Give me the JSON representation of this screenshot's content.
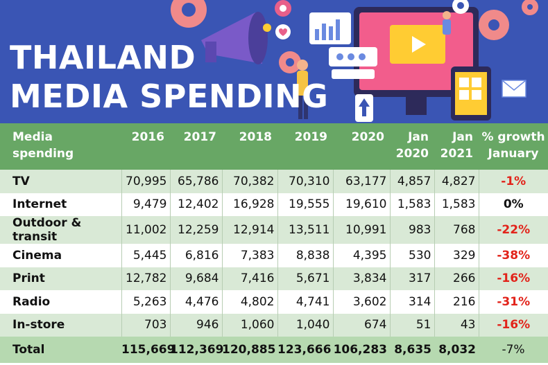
{
  "banner": {
    "title_line1": "THAILAND",
    "title_line2": "MEDIA SPENDING"
  },
  "chart_data": {
    "type": "table",
    "title": "THAILAND MEDIA SPENDING",
    "columns": [
      "Media spending",
      "2016",
      "2017",
      "2018",
      "2019",
      "2020",
      "Jan 2020",
      "Jan 2021",
      "% growth January"
    ],
    "header": {
      "media": [
        "Media",
        "spending"
      ],
      "y2016": "2016",
      "y2017": "2017",
      "y2018": "2018",
      "y2019": "2019",
      "y2020": "2020",
      "jan2020": [
        "Jan",
        "2020"
      ],
      "jan2021": [
        "Jan",
        "2021"
      ],
      "growth": [
        "% growth",
        "January"
      ]
    },
    "rows": [
      {
        "name": "TV",
        "values": [
          "70,995",
          "65,786",
          "70,382",
          "70,310",
          "63,177",
          "4,857",
          "4,827"
        ],
        "growth": "-1%"
      },
      {
        "name": "Internet",
        "values": [
          "9,479",
          "12,402",
          "16,928",
          "19,555",
          "19,610",
          "1,583",
          "1,583"
        ],
        "growth": "0%"
      },
      {
        "name": "Outdoor & transit",
        "values": [
          "11,002",
          "12,259",
          "12,914",
          "13,511",
          "10,991",
          "983",
          "768"
        ],
        "growth": "-22%"
      },
      {
        "name": "Cinema",
        "values": [
          "5,445",
          "6,816",
          "7,383",
          "8,838",
          "4,395",
          "530",
          "329"
        ],
        "growth": "-38%"
      },
      {
        "name": "Print",
        "values": [
          "12,782",
          "9,684",
          "7,416",
          "5,671",
          "3,834",
          "317",
          "266"
        ],
        "growth": "-16%"
      },
      {
        "name": "Radio",
        "values": [
          "5,263",
          "4,476",
          "4,802",
          "4,741",
          "3,602",
          "314",
          "216"
        ],
        "growth": "-31%"
      },
      {
        "name": "In-store",
        "values": [
          "703",
          "946",
          "1,060",
          "1,040",
          "674",
          "51",
          "43"
        ],
        "growth": "-16%"
      }
    ],
    "total": {
      "name": "Total",
      "values": [
        "115,669",
        "112,369",
        "120,885",
        "123,666",
        "106,283",
        "8,635",
        "8,032"
      ],
      "growth": "-7%"
    }
  },
  "colors": {
    "banner_bg": "#3a55b4",
    "header_bg": "#68a765",
    "row_shade": "#d9e9d6",
    "total_bg": "#b6d9b0",
    "negative": "#e2231a"
  }
}
